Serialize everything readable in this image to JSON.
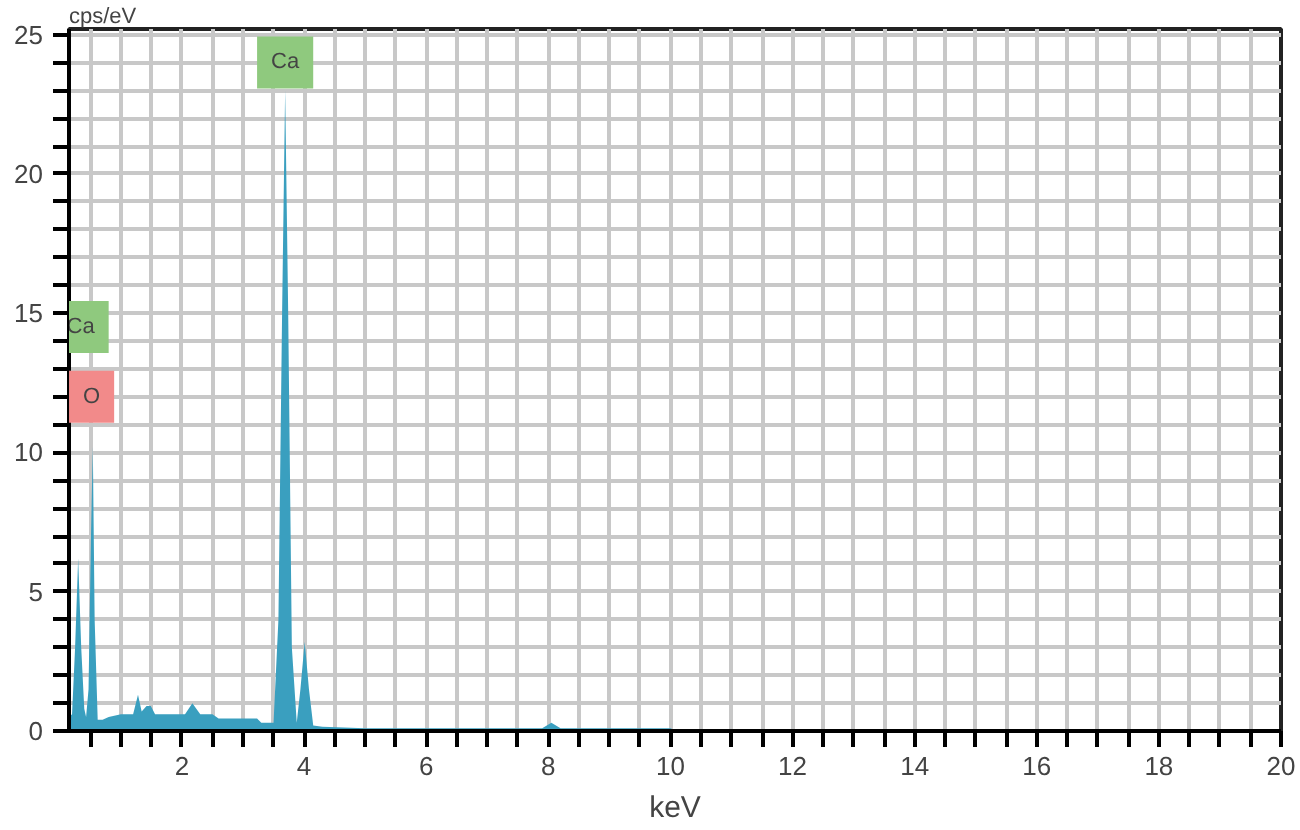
{
  "chart_data": {
    "type": "area",
    "xlabel": "keV",
    "ylabel": "cps/eV",
    "x": [
      0.15,
      0.2,
      0.25,
      0.3,
      0.35,
      0.4,
      0.43,
      0.47,
      0.51,
      0.54,
      0.57,
      0.62,
      0.7,
      0.8,
      1.0,
      1.2,
      1.28,
      1.34,
      1.42,
      1.49,
      1.56,
      1.7,
      1.9,
      2.05,
      2.17,
      2.3,
      2.5,
      2.6,
      2.9,
      3.23,
      3.3,
      3.5,
      3.58,
      3.64,
      3.69,
      3.74,
      3.8,
      3.88,
      3.94,
      4.01,
      4.08,
      4.15,
      4.3,
      5.0,
      6.0,
      7.0,
      7.9,
      8.05,
      8.2,
      9.0,
      10.0,
      10.1
    ],
    "series": [
      {
        "color": "#3a9fbf",
        "values": [
          0.5,
          0.6,
          3.0,
          6.2,
          3.0,
          0.8,
          0.5,
          1.5,
          7.0,
          10.2,
          4.0,
          0.4,
          0.4,
          0.5,
          0.6,
          0.6,
          1.3,
          0.7,
          0.9,
          0.9,
          0.6,
          0.6,
          0.6,
          0.6,
          1.0,
          0.6,
          0.6,
          0.45,
          0.45,
          0.45,
          0.3,
          0.3,
          4.0,
          15.0,
          23.0,
          15.0,
          3.0,
          0.3,
          1.5,
          3.2,
          1.5,
          0.2,
          0.15,
          0.1,
          0.1,
          0.1,
          0.1,
          0.3,
          0.1,
          0.1,
          0.1,
          0.0
        ]
      }
    ],
    "xlim": [
      0.15,
      20
    ],
    "ylim": [
      0,
      25.2
    ],
    "xticks": [
      {
        "value": 0.5,
        "label": null
      },
      {
        "value": 1,
        "label": null
      },
      {
        "value": 1.5,
        "label": null
      },
      2,
      {
        "value": 2.5,
        "label": null
      },
      {
        "value": 3,
        "label": null
      },
      {
        "value": 3.5,
        "label": null
      },
      4,
      {
        "value": 4.5,
        "label": null
      },
      {
        "value": 5,
        "label": null
      },
      {
        "value": 5.5,
        "label": null
      },
      6,
      {
        "value": 6.5,
        "label": null
      },
      {
        "value": 7,
        "label": null
      },
      {
        "value": 7.5,
        "label": null
      },
      8,
      {
        "value": 8.5,
        "label": null
      },
      {
        "value": 9,
        "label": null
      },
      {
        "value": 9.5,
        "label": null
      },
      10,
      {
        "value": 10.5,
        "label": null
      },
      {
        "value": 11,
        "label": null
      },
      {
        "value": 11.5,
        "label": null
      },
      12,
      {
        "value": 12.5,
        "label": null
      },
      {
        "value": 13,
        "label": null
      },
      {
        "value": 13.5,
        "label": null
      },
      14,
      {
        "value": 14.5,
        "label": null
      },
      {
        "value": 15,
        "label": null
      },
      {
        "value": 15.5,
        "label": null
      },
      16,
      {
        "value": 16.5,
        "label": null
      },
      {
        "value": 17,
        "label": null
      },
      {
        "value": 17.5,
        "label": null
      },
      18,
      {
        "value": 18.5,
        "label": null
      },
      {
        "value": 19,
        "label": null
      },
      {
        "value": 19.5,
        "label": null
      },
      20
    ],
    "yticks": [
      0,
      {
        "value": 1,
        "label": null
      },
      {
        "value": 2,
        "label": null
      },
      {
        "value": 3,
        "label": null
      },
      {
        "value": 4,
        "label": null
      },
      5,
      {
        "value": 6,
        "label": null
      },
      {
        "value": 7,
        "label": null
      },
      {
        "value": 8,
        "label": null
      },
      {
        "value": 9,
        "label": null
      },
      10,
      {
        "value": 11,
        "label": null
      },
      {
        "value": 12,
        "label": null
      },
      {
        "value": 13,
        "label": null
      },
      {
        "value": 14,
        "label": null
      },
      15,
      {
        "value": 16,
        "label": null
      },
      {
        "value": 17,
        "label": null
      },
      {
        "value": 18,
        "label": null
      },
      {
        "value": 19,
        "label": null
      },
      20,
      {
        "value": 21,
        "label": null
      },
      {
        "value": 22,
        "label": null
      },
      {
        "value": 23,
        "label": null
      },
      {
        "value": 24,
        "label": null
      },
      25
    ],
    "grid": true,
    "annotations": [
      {
        "text": "Ca",
        "x": 3.69,
        "y": 24.0
      },
      {
        "text": "Ca",
        "x": 0.34,
        "y": 14.5
      },
      {
        "text": "O",
        "x": 0.52,
        "y": 12.0
      }
    ]
  }
}
